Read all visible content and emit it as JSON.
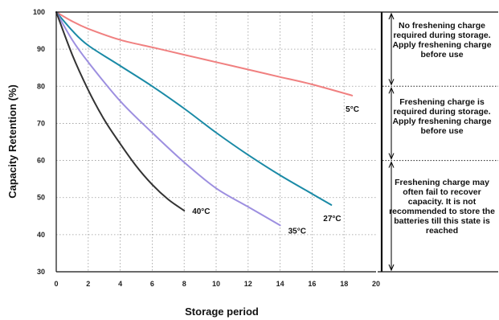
{
  "chart_data": {
    "type": "line",
    "xlabel": "Storage period",
    "ylabel": "Capacity Retention (%)",
    "xlim": [
      0,
      20
    ],
    "ylim": [
      30,
      100
    ],
    "x_ticks": [
      "0",
      "2",
      "4",
      "6",
      "8",
      "10",
      "12",
      "14",
      "16",
      "18",
      "20"
    ],
    "y_ticks": [
      "100",
      "90",
      "80",
      "70",
      "60",
      "50",
      "40",
      "30"
    ],
    "grid": "dotted",
    "series": [
      {
        "name": "5°C",
        "color": "#f08080",
        "x": [
          0,
          1,
          2,
          4,
          6,
          8,
          10,
          12,
          14,
          16,
          18.5
        ],
        "y": [
          100,
          97.5,
          95.5,
          92.5,
          90.5,
          88.5,
          86.5,
          84.5,
          82.5,
          80.5,
          77.5
        ]
      },
      {
        "name": "27°C",
        "color": "#1a8aa6",
        "x": [
          0,
          1,
          2,
          4,
          6,
          8,
          10,
          12,
          14,
          16,
          17.2
        ],
        "y": [
          100,
          95,
          91,
          85.5,
          80,
          74,
          67.5,
          61.5,
          56,
          51,
          48
        ]
      },
      {
        "name": "35°C",
        "color": "#9d8fe0",
        "x": [
          0,
          1,
          2,
          4,
          6,
          8,
          10,
          12,
          14
        ],
        "y": [
          100,
          92.5,
          86.5,
          76,
          67.5,
          59.5,
          52.5,
          47.5,
          42.5
        ]
      },
      {
        "name": "40°C",
        "color": "#333333",
        "x": [
          0,
          1,
          2,
          3,
          4,
          5,
          6,
          7,
          8
        ],
        "y": [
          100,
          88.5,
          79,
          71,
          64.5,
          58.5,
          53.5,
          49.5,
          46.5
        ]
      }
    ],
    "annotations": [
      {
        "text": "No freshening charge required during storage. Apply freshening charge before use",
        "y_range": [
          80,
          100
        ]
      },
      {
        "text": "Freshening charge is required during storage. Apply freshening charge before use",
        "y_range": [
          60,
          80
        ]
      },
      {
        "text": "Freshening charge may often fail to recover capacity. It is not recommended to store the batteries till this state is reached",
        "y_range": [
          30,
          60
        ]
      }
    ]
  }
}
